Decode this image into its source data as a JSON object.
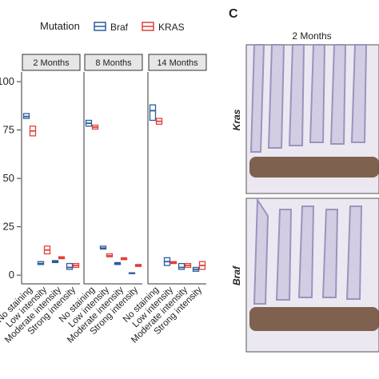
{
  "legend_title": "Mutation",
  "panel_label": "C",
  "image_title": "2 Months",
  "image_labels": [
    "Kras",
    "Braf"
  ],
  "chart_data": {
    "type": "box",
    "facets": [
      "2 Months",
      "8 Months",
      "14 Months"
    ],
    "categories": [
      "No staining",
      "Low intensity",
      "Moderate intensity",
      "Strong intensity"
    ],
    "series": [
      {
        "name": "Braf",
        "color": "#2b5d9b",
        "q1": [
          [
            81,
            5.5,
            6.5,
            3
          ],
          [
            77,
            13.5,
            5.5,
            1
          ],
          [
            80,
            5,
            3,
            2
          ]
        ],
        "median": [
          [
            82,
            6,
            7,
            4
          ],
          [
            78.5,
            14,
            6,
            1.1
          ],
          [
            85,
            7,
            4,
            3
          ]
        ],
        "q3": [
          [
            83.5,
            7,
            7.5,
            6
          ],
          [
            80,
            15,
            6.5,
            1.2
          ],
          [
            88,
            9,
            6,
            4
          ]
        ]
      },
      {
        "name": "KRAS",
        "color": "#e0403a",
        "q1": [
          [
            72,
            11,
            8.5,
            4
          ],
          [
            75.5,
            9.5,
            8,
            4.5
          ],
          [
            78,
            6,
            4,
            3
          ]
        ],
        "median": [
          [
            74.5,
            13,
            9,
            5
          ],
          [
            76.5,
            10,
            8.5,
            5
          ],
          [
            79.5,
            6.5,
            5,
            5
          ]
        ],
        "q3": [
          [
            77,
            15,
            9.5,
            6
          ],
          [
            77.5,
            11,
            9,
            5.5
          ],
          [
            81,
            7,
            6,
            7
          ]
        ]
      }
    ],
    "ylim": [
      -4.5,
      105
    ],
    "yticks": [
      0,
      25,
      50,
      75,
      100
    ]
  }
}
